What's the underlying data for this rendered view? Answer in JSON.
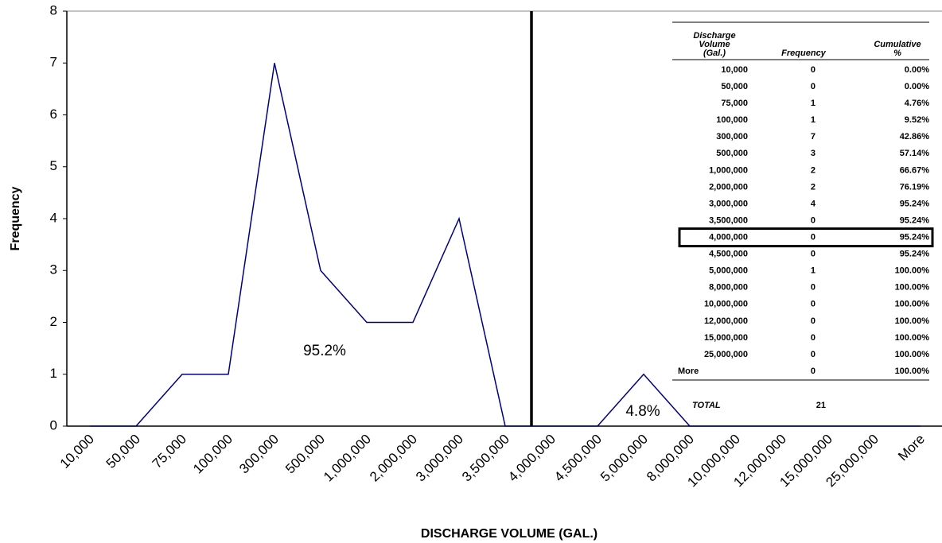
{
  "chart_data": {
    "type": "line",
    "x_label": "DISCHARGE VOLUME (GAL.)",
    "y_label": "Frequency",
    "categories": [
      "10,000",
      "50,000",
      "75,000",
      "100,000",
      "300,000",
      "500,000",
      "1,000,000",
      "2,000,000",
      "3,000,000",
      "3,500,000",
      "4,000,000",
      "4,500,000",
      "5,000,000",
      "8,000,000",
      "10,000,000",
      "12,000,000",
      "15,000,000",
      "25,000,000",
      "More"
    ],
    "series": [
      {
        "name": "Frequency",
        "color": "#000080",
        "values": [
          0,
          0,
          1,
          1,
          7,
          3,
          2,
          2,
          4,
          0,
          0,
          0,
          1,
          0,
          0,
          0,
          0,
          0,
          0
        ]
      }
    ],
    "ylim": [
      0,
      8
    ],
    "yticks": [
      0,
      1,
      2,
      3,
      4,
      5,
      6,
      7,
      8
    ],
    "grid": false,
    "annotations": [
      "95.2%",
      "4.8%"
    ],
    "table": {
      "headers": [
        [
          "Discharge",
          "Volume",
          "(Gal.)"
        ],
        [
          "Frequency"
        ],
        [
          "Cumulative",
          "%"
        ]
      ],
      "rows": [
        [
          "10,000",
          "0",
          "0.00%"
        ],
        [
          "50,000",
          "0",
          "0.00%"
        ],
        [
          "75,000",
          "1",
          "4.76%"
        ],
        [
          "100,000",
          "1",
          "9.52%"
        ],
        [
          "300,000",
          "7",
          "42.86%"
        ],
        [
          "500,000",
          "3",
          "57.14%"
        ],
        [
          "1,000,000",
          "2",
          "66.67%"
        ],
        [
          "2,000,000",
          "2",
          "76.19%"
        ],
        [
          "3,000,000",
          "4",
          "95.24%"
        ],
        [
          "3,500,000",
          "0",
          "95.24%"
        ],
        [
          "4,000,000",
          "0",
          "95.24%"
        ],
        [
          "4,500,000",
          "0",
          "95.24%"
        ],
        [
          "5,000,000",
          "1",
          "100.00%"
        ],
        [
          "8,000,000",
          "0",
          "100.00%"
        ],
        [
          "10,000,000",
          "0",
          "100.00%"
        ],
        [
          "12,000,000",
          "0",
          "100.00%"
        ],
        [
          "15,000,000",
          "0",
          "100.00%"
        ],
        [
          "25,000,000",
          "0",
          "100.00%"
        ],
        [
          "More",
          "0",
          "100.00%"
        ]
      ],
      "highlight_row": 10,
      "total_label": "TOTAL",
      "total": "21"
    }
  }
}
